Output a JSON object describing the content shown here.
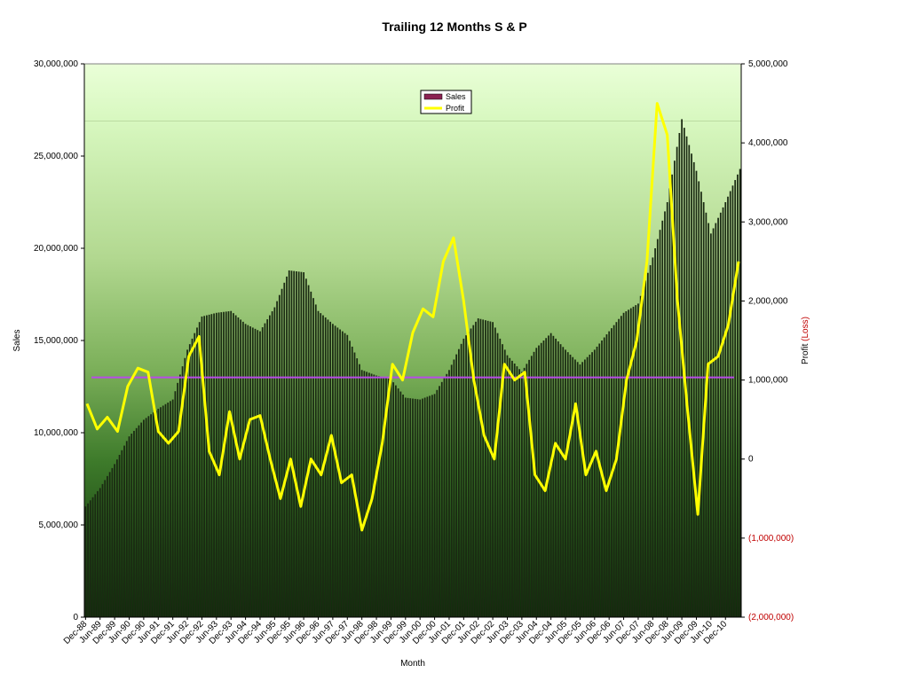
{
  "chart_data": {
    "type": "bar+line",
    "title": "Trailing 12 Months S & P",
    "xlabel": "Month",
    "ylabel_left": "Sales",
    "ylabel_right_prefix": "Profit ",
    "ylabel_right_loss": "(Loss)",
    "y_left_range": [
      0,
      30000000
    ],
    "y_right_range": [
      -2000000,
      5000000
    ],
    "y_left_ticks": [
      "0",
      "5,000,000",
      "10,000,000",
      "15,000,000",
      "20,000,000",
      "25,000,000",
      "30,000,000"
    ],
    "y_right_ticks": [
      "(2,000,000)",
      "(1,000,000)",
      "0",
      "1,000,000",
      "2,000,000",
      "3,000,000",
      "4,000,000",
      "5,000,000"
    ],
    "x_tick_labels": [
      "Dec-88",
      "Jun-89",
      "Dec-89",
      "Jun-90",
      "Dec-90",
      "Jun-91",
      "Dec-91",
      "Jun-92",
      "Dec-92",
      "Jun-93",
      "Dec-93",
      "Jun-94",
      "Dec-94",
      "Jun-95",
      "Dec-95",
      "Jun-96",
      "Dec-96",
      "Jun-97",
      "Dec-97",
      "Jun-98",
      "Dec-98",
      "Jun-99",
      "Dec-99",
      "Jun-00",
      "Dec-00",
      "Jun-01",
      "Dec-01",
      "Jun-02",
      "Dec-02",
      "Jun-03",
      "Dec-03",
      "Jun-04",
      "Dec-04",
      "Jun-05",
      "Dec-05",
      "Jun-06",
      "Dec-06",
      "Jun-07",
      "Dec-07",
      "Jun-08",
      "Dec-08",
      "Jun-09",
      "Dec-09",
      "Jun-10",
      "Dec-10"
    ],
    "sales_anchors": [
      6000000,
      7000000,
      8300000,
      9800000,
      10700000,
      11300000,
      11800000,
      14500000,
      16300000,
      16500000,
      16600000,
      15900000,
      15500000,
      16800000,
      18800000,
      18700000,
      16600000,
      15900000,
      15300000,
      13400000,
      13100000,
      12900000,
      11900000,
      11800000,
      12100000,
      13400000,
      15100000,
      16200000,
      16000000,
      14200000,
      13300000,
      14600000,
      15400000,
      14500000,
      13700000,
      14500000,
      15500000,
      16500000,
      17000000,
      19500000,
      22500000,
      27000000,
      24200000,
      20800000,
      22500000,
      24300000
    ],
    "profit_points": [
      [
        0,
        700000
      ],
      [
        1,
        380000
      ],
      [
        2,
        530000
      ],
      [
        3,
        350000
      ],
      [
        4,
        920000
      ],
      [
        5,
        1150000
      ],
      [
        6,
        1100000
      ],
      [
        7,
        350000
      ],
      [
        8,
        200000
      ],
      [
        9,
        350000
      ],
      [
        10,
        1300000
      ],
      [
        11,
        1550000
      ],
      [
        12,
        100000
      ],
      [
        13,
        -200000
      ],
      [
        14,
        600000
      ],
      [
        15,
        0
      ],
      [
        16,
        500000
      ],
      [
        17,
        550000
      ],
      [
        18,
        0
      ],
      [
        19,
        -500000
      ],
      [
        20,
        0
      ],
      [
        21,
        -600000
      ],
      [
        22,
        0
      ],
      [
        23,
        -200000
      ],
      [
        24,
        300000
      ],
      [
        25,
        -300000
      ],
      [
        26,
        -200000
      ],
      [
        27,
        -900000
      ],
      [
        28,
        -500000
      ],
      [
        29,
        200000
      ],
      [
        30,
        1200000
      ],
      [
        31,
        1000000
      ],
      [
        32,
        1600000
      ],
      [
        33,
        1900000
      ],
      [
        34,
        1800000
      ],
      [
        35,
        2500000
      ],
      [
        36,
        2800000
      ],
      [
        37,
        2000000
      ],
      [
        38,
        1000000
      ],
      [
        39,
        300000
      ],
      [
        40,
        0
      ],
      [
        41,
        1200000
      ],
      [
        42,
        1000000
      ],
      [
        43,
        1100000
      ],
      [
        44,
        -200000
      ],
      [
        45,
        -400000
      ],
      [
        46,
        200000
      ],
      [
        47,
        0
      ],
      [
        48,
        700000
      ],
      [
        49,
        -200000
      ],
      [
        50,
        100000
      ],
      [
        51,
        -400000
      ],
      [
        52,
        0
      ],
      [
        53,
        1000000
      ],
      [
        54,
        1500000
      ],
      [
        55,
        2500000
      ],
      [
        56,
        4500000
      ],
      [
        57,
        4100000
      ],
      [
        58,
        2000000
      ],
      [
        59,
        600000
      ],
      [
        60,
        -700000
      ],
      [
        61,
        1200000
      ],
      [
        62,
        1300000
      ],
      [
        63,
        1700000
      ],
      [
        64,
        2500000
      ]
    ],
    "profit_last_index": 64,
    "baseline_left_value": 13000000,
    "series": [
      {
        "name": "Sales",
        "color": "#8b2252"
      },
      {
        "name": "Profit",
        "color": "#ffff00"
      }
    ],
    "colors": {
      "reference_line": "#b94be8",
      "bar_fill": "#1a2a12",
      "negative_tick": "#c00000"
    },
    "legend_position": "top-center"
  }
}
